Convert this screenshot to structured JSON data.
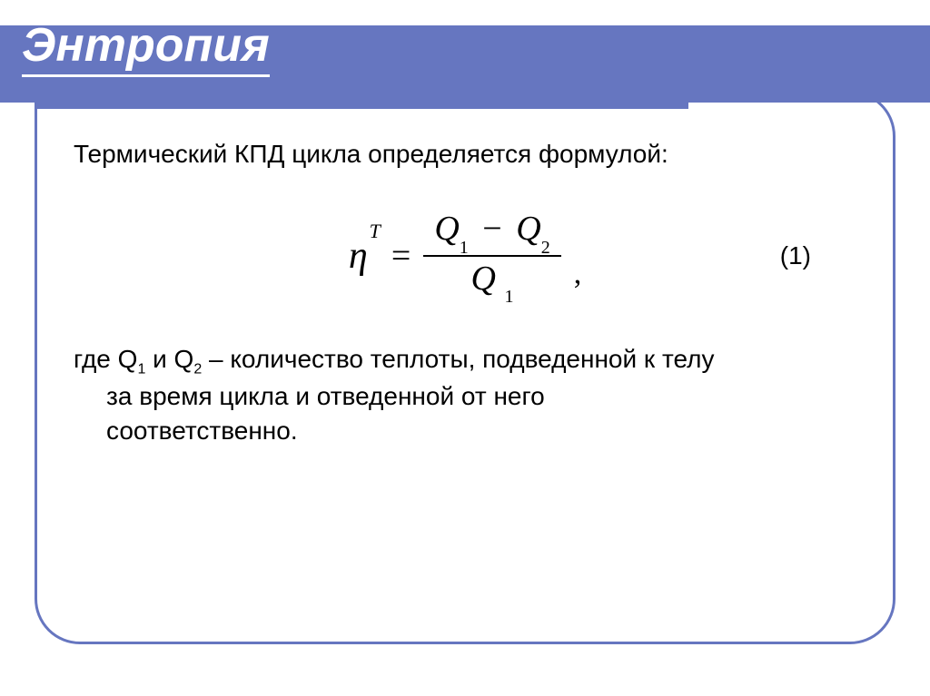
{
  "colors": {
    "accent": "#6676c0",
    "background": "#ffffff",
    "text": "#000000",
    "title_text": "#ffffff"
  },
  "typography": {
    "title_fontsize": 52,
    "body_fontsize": 28,
    "formula_fontsize": 40,
    "formula_family": "Times New Roman",
    "title_style": "bold italic underline"
  },
  "title": "Энтропия",
  "intro": "Термический КПД цикла определяется формулой:",
  "formula": {
    "lhs_symbol": "η",
    "lhs_superscript": "T",
    "equals": "=",
    "numerator": {
      "term1": "Q",
      "sub1": "1",
      "operator": "−",
      "term2": "Q",
      "sub2": "2"
    },
    "denominator": {
      "term": "Q",
      "sub": "1"
    },
    "trailing": ","
  },
  "equation_number": "(1)",
  "explanation": {
    "line1_prefix": "где Q",
    "q1_sub": "1",
    "line1_mid": " и Q",
    "q2_sub": "2",
    "line1_suffix": " – количество теплоты, подведенной к телу",
    "line2": "за время цикла и отведенной от него",
    "line3": "соответственно."
  }
}
